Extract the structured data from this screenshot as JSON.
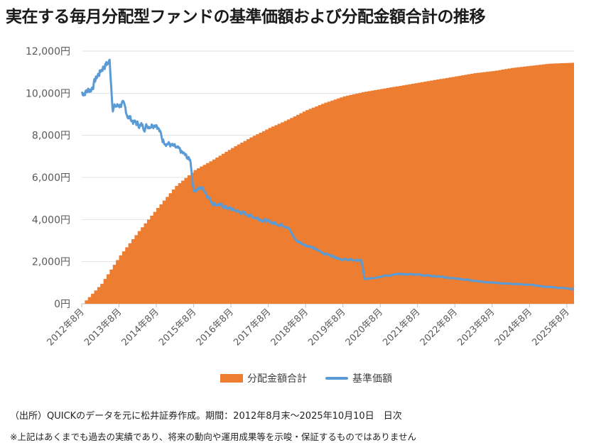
{
  "title": "実在する毎月分配型ファンドの基準価額および分配金額合計の推移",
  "chart_data": {
    "type": "area+line",
    "ylim": [
      0,
      12000
    ],
    "y_ticks": [
      "0円",
      "2,000円",
      "4,000円",
      "6,000円",
      "8,000円",
      "10,000円",
      "12,000円"
    ],
    "x_ticks": [
      "2012年8月",
      "2013年8月",
      "2014年8月",
      "2015年8月",
      "2016年8月",
      "2017年8月",
      "2018年8月",
      "2019年8月",
      "2020年8月",
      "2021年8月",
      "2022年8月",
      "2023年8月",
      "2024年8月",
      "2025年8月"
    ],
    "grid": true,
    "legend_position": "bottom",
    "series": [
      {
        "name": "分配金額合計",
        "kind": "stepped-area",
        "color": "#ED7D31",
        "points": [
          [
            "2012-08",
            0
          ],
          [
            "2013-02",
            950
          ],
          [
            "2013-08",
            2300
          ],
          [
            "2014-02",
            3450
          ],
          [
            "2014-08",
            4550
          ],
          [
            "2015-02",
            5600
          ],
          [
            "2015-08",
            6350
          ],
          [
            "2016-02",
            6850
          ],
          [
            "2016-08",
            7400
          ],
          [
            "2017-02",
            7900
          ],
          [
            "2017-08",
            8350
          ],
          [
            "2018-02",
            8750
          ],
          [
            "2018-08",
            9200
          ],
          [
            "2019-02",
            9550
          ],
          [
            "2019-08",
            9850
          ],
          [
            "2020-02",
            10050
          ],
          [
            "2020-08",
            10200
          ],
          [
            "2021-02",
            10350
          ],
          [
            "2021-08",
            10500
          ],
          [
            "2022-02",
            10650
          ],
          [
            "2022-08",
            10800
          ],
          [
            "2023-02",
            10950
          ],
          [
            "2023-08",
            11050
          ],
          [
            "2024-02",
            11200
          ],
          [
            "2024-08",
            11300
          ],
          [
            "2025-02",
            11400
          ],
          [
            "2025-10",
            11450
          ]
        ]
      },
      {
        "name": "基準価額",
        "kind": "line",
        "color": "#5B9BD5",
        "points": [
          [
            "2012-08",
            10000
          ],
          [
            "2012-11",
            10200
          ],
          [
            "2013-01",
            10800
          ],
          [
            "2013-03",
            11300
          ],
          [
            "2013-05",
            11500
          ],
          [
            "2013-06",
            9300
          ],
          [
            "2013-09",
            9500
          ],
          [
            "2013-11",
            8900
          ],
          [
            "2014-01",
            8600
          ],
          [
            "2014-04",
            8400
          ],
          [
            "2014-08",
            8600
          ],
          [
            "2014-10",
            7800
          ],
          [
            "2015-01",
            7500
          ],
          [
            "2015-04",
            7200
          ],
          [
            "2015-07",
            6800
          ],
          [
            "2015-08",
            5400
          ],
          [
            "2015-11",
            5500
          ],
          [
            "2016-02",
            4800
          ],
          [
            "2016-08",
            4500
          ],
          [
            "2017-02",
            4200
          ],
          [
            "2017-08",
            3900
          ],
          [
            "2018-02",
            3700
          ],
          [
            "2018-05",
            3000
          ],
          [
            "2018-08",
            2800
          ],
          [
            "2019-02",
            2400
          ],
          [
            "2019-08",
            2100
          ],
          [
            "2020-02",
            2050
          ],
          [
            "2020-03",
            1150
          ],
          [
            "2020-08",
            1300
          ],
          [
            "2021-02",
            1400
          ],
          [
            "2021-08",
            1400
          ],
          [
            "2022-02",
            1300
          ],
          [
            "2022-08",
            1200
          ],
          [
            "2023-02",
            1100
          ],
          [
            "2023-08",
            1000
          ],
          [
            "2024-02",
            950
          ],
          [
            "2024-08",
            900
          ],
          [
            "2025-02",
            800
          ],
          [
            "2025-10",
            700
          ]
        ]
      }
    ]
  },
  "legend": {
    "bar_label": "分配金額合計",
    "line_label": "基準価額"
  },
  "notes": {
    "source": "（出所）QUICKのデータを元に松井証券作成。期間：2012年8月末～2025年10月10日　日次",
    "disclaimer": "※上記はあくまでも過去の実績であり、将来の動向や運用成果等を示唆・保証するものではありません"
  }
}
